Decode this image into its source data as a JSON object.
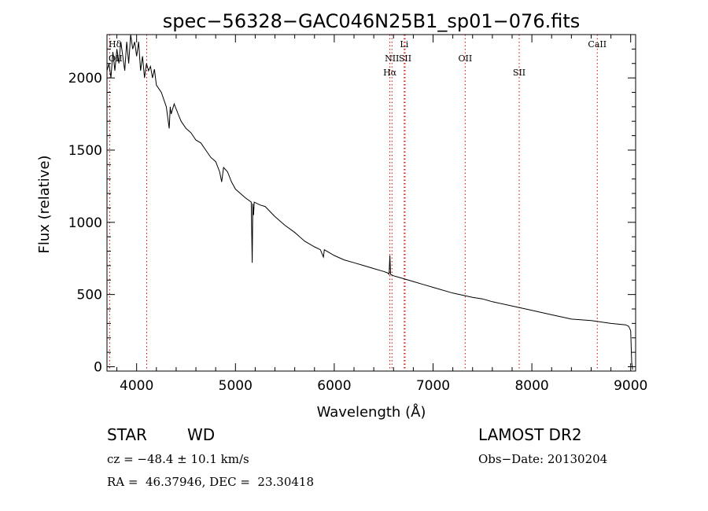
{
  "chart_data": {
    "type": "line",
    "title": "spec−56328−GAC046N25B1_sp01−076.fits",
    "xlabel": "Wavelength (Å)",
    "ylabel": "Flux (relative)",
    "xlim": [
      3700,
      9050
    ],
    "ylim": [
      -30,
      2300
    ],
    "xticks": [
      4000,
      5000,
      6000,
      7000,
      8000,
      9000
    ],
    "yticks": [
      0,
      500,
      1000,
      1500,
      2000
    ],
    "grid": false,
    "series": [
      {
        "values_x": [
          3700,
          3720,
          3740,
          3760,
          3780,
          3800,
          3820,
          3840,
          3860,
          3880,
          3900,
          3920,
          3940,
          3960,
          3980,
          4000,
          4020,
          4040,
          4060,
          4080,
          4100,
          4120,
          4140,
          4160,
          4180,
          4200,
          4250,
          4300,
          4330,
          4340,
          4350,
          4380,
          4420,
          4450,
          4500,
          4550,
          4600,
          4650,
          4700,
          4750,
          4800,
          4840,
          4861,
          4880,
          4920,
          4960,
          5000,
          5050,
          5100,
          5160,
          5170,
          5176,
          5183,
          5190,
          5250,
          5300,
          5400,
          5500,
          5600,
          5700,
          5800,
          5860,
          5890,
          5900,
          6000,
          6100,
          6200,
          6300,
          6400,
          6500,
          6540,
          6555,
          6563,
          6570,
          6600,
          6700,
          6800,
          6900,
          7000,
          7200,
          7400,
          7500,
          7600,
          7800,
          8000,
          8200,
          8400,
          8600,
          8800,
          8950,
          8980,
          9000,
          9010,
          9020
        ],
        "values_y": [
          2050,
          2100,
          2000,
          2180,
          2050,
          2200,
          2100,
          2250,
          2150,
          2050,
          2250,
          2100,
          2300,
          2200,
          2250,
          2150,
          2250,
          2050,
          2150,
          2000,
          2100,
          2050,
          2080,
          2000,
          2060,
          1950,
          1900,
          1800,
          1650,
          1800,
          1750,
          1820,
          1750,
          1700,
          1650,
          1620,
          1570,
          1550,
          1500,
          1450,
          1420,
          1350,
          1280,
          1380,
          1350,
          1280,
          1230,
          1200,
          1170,
          1140,
          720,
          1130,
          1050,
          1140,
          1120,
          1110,
          1040,
          980,
          930,
          870,
          830,
          810,
          760,
          810,
          770,
          740,
          720,
          700,
          680,
          660,
          650,
          640,
          770,
          640,
          630,
          610,
          590,
          570,
          550,
          510,
          480,
          470,
          450,
          420,
          390,
          360,
          330,
          320,
          300,
          290,
          280,
          250,
          30,
          -20
        ]
      }
    ],
    "lines": [
      {
        "label": "Hδ",
        "x": 4102
      },
      {
        "label": "OII",
        "x": 3727
      },
      {
        "label": "Hα",
        "x": 6563
      },
      {
        "label": "NII",
        "x": 6584
      },
      {
        "label": "Li",
        "x": 6708
      },
      {
        "label": "SII",
        "x": 6717
      },
      {
        "label": "OII",
        "x": 7325
      },
      {
        "label": "SII",
        "x": 7872
      },
      {
        "label": "CaII",
        "x": 8662
      }
    ]
  },
  "info": {
    "object_class": "STAR",
    "subclass": "WD",
    "survey": "LAMOST DR2",
    "cz": "cz = −48.4 ± 10.1 km/s",
    "obs_date": "Obs−Date: 20130204",
    "coords": "RA =  46.37946, DEC =  23.30418"
  },
  "colors": {
    "spectrum": "#000000",
    "line_markers": "#d00000",
    "background": "#ffffff"
  }
}
